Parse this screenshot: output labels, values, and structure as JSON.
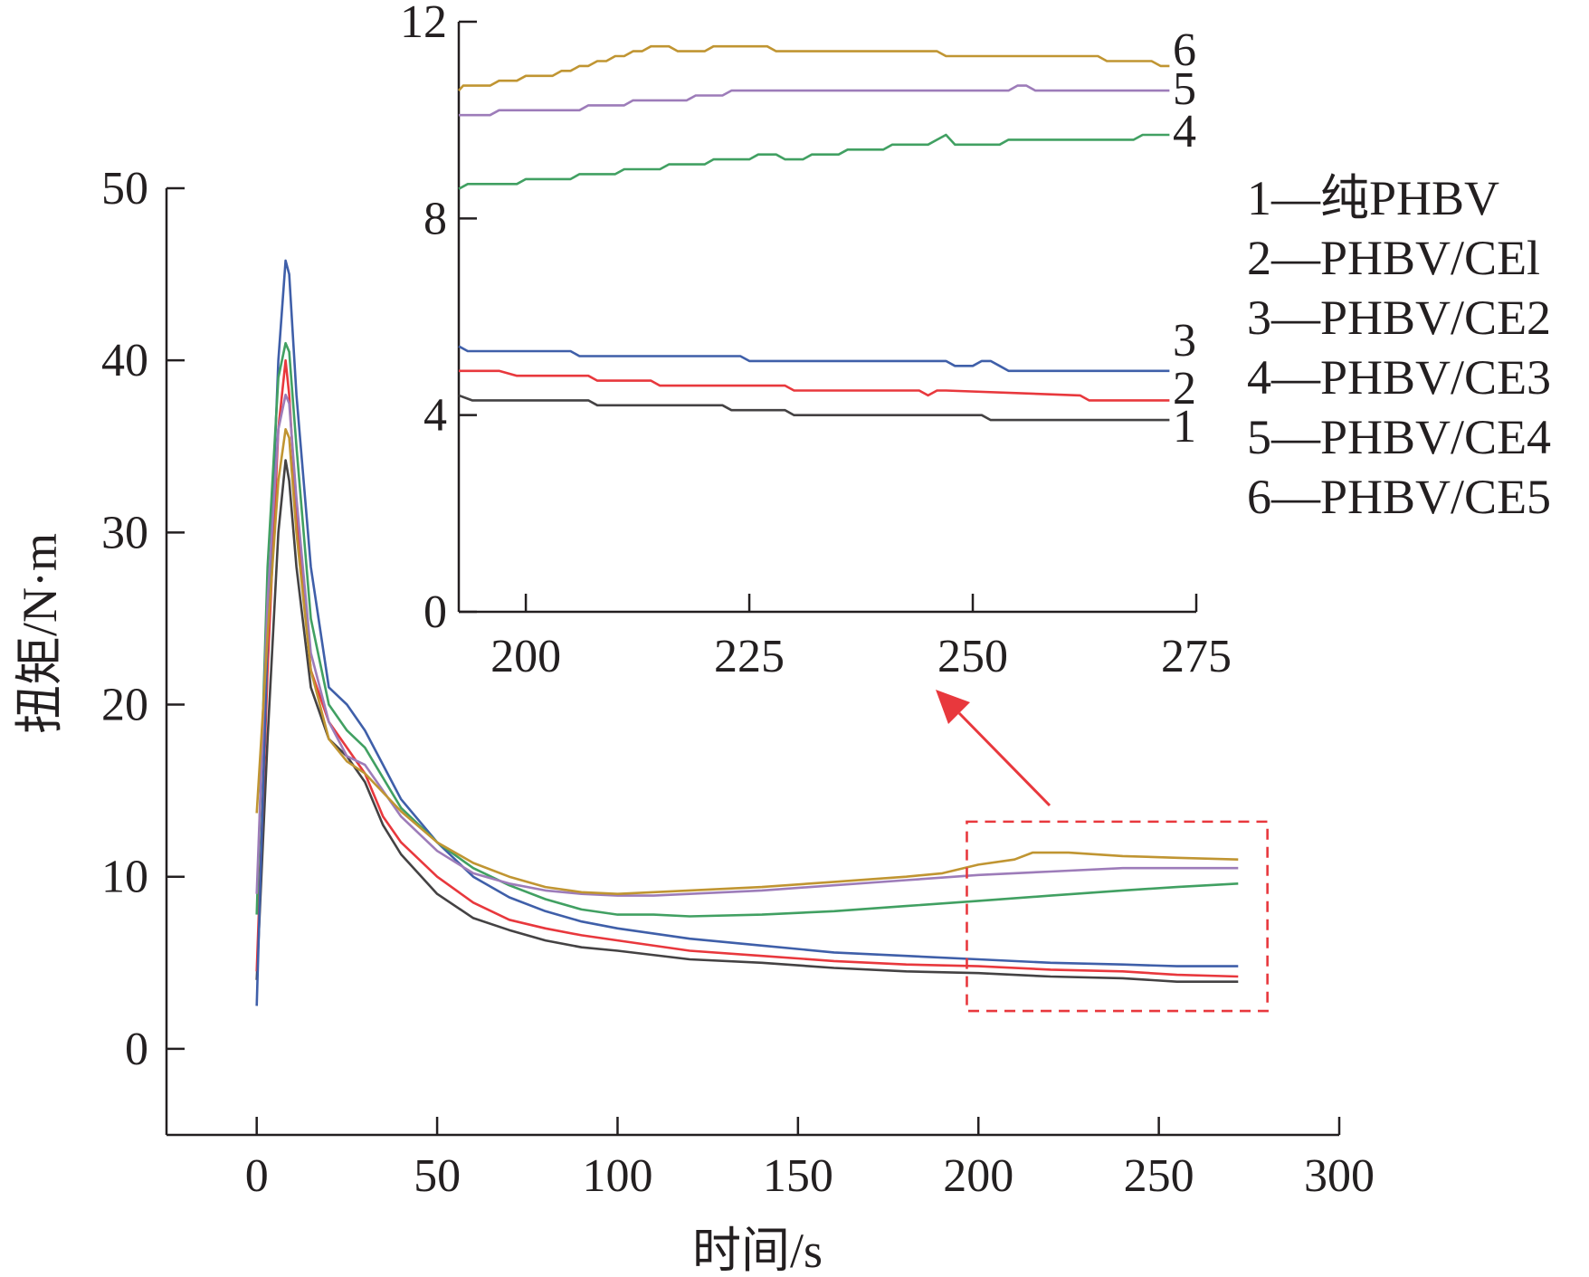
{
  "chart_data": [
    {
      "type": "line",
      "panel": "main",
      "xlabel": "时间/s",
      "ylabel": "扭矩/N·m",
      "xlim": [
        -25,
        300
      ],
      "ylim": [
        -5,
        50
      ],
      "xticks": [
        0,
        50,
        100,
        150,
        200,
        250,
        300
      ],
      "yticks": [
        0,
        10,
        20,
        30,
        40,
        50
      ],
      "grid": false,
      "legend_position": "right",
      "legend": [
        "1—纯PHBV",
        "2—PHBV/CEl",
        "3—PHBV/CE2",
        "4—PHBV/CE3",
        "5—PHBV/CE4",
        "6—PHBV/CE5"
      ],
      "zoom_box": {
        "x": [
          196.8,
          280.1
        ],
        "y": [
          2.2,
          13.2
        ],
        "color": "#e8383d"
      },
      "series": [
        {
          "id": "1",
          "color": "#444243",
          "x": [
            0,
            3,
            6,
            8,
            9,
            11,
            15,
            20,
            25,
            30,
            35,
            40,
            50,
            60,
            70,
            80,
            90,
            100,
            120,
            140,
            160,
            180,
            200,
            220,
            240,
            255,
            272
          ],
          "y": [
            4.0,
            18.0,
            30.0,
            34.2,
            33.0,
            28.0,
            21.0,
            18.0,
            17.0,
            15.5,
            13.0,
            11.3,
            9.0,
            7.6,
            6.9,
            6.3,
            5.9,
            5.7,
            5.2,
            5.0,
            4.7,
            4.5,
            4.4,
            4.2,
            4.1,
            3.9,
            3.9
          ]
        },
        {
          "id": "2",
          "color": "#e8383d",
          "x": [
            0,
            3,
            6,
            8,
            9,
            11,
            15,
            20,
            25,
            30,
            35,
            40,
            50,
            60,
            70,
            80,
            90,
            100,
            120,
            140,
            160,
            180,
            200,
            220,
            240,
            255,
            272
          ],
          "y": [
            4.5,
            22.0,
            36.0,
            40.0,
            38.0,
            31.0,
            22.0,
            19.0,
            17.5,
            16.0,
            13.5,
            12.0,
            10.0,
            8.5,
            7.5,
            7.0,
            6.6,
            6.3,
            5.7,
            5.4,
            5.1,
            4.9,
            4.8,
            4.6,
            4.5,
            4.3,
            4.2
          ]
        },
        {
          "id": "3",
          "color": "#3f5fa9",
          "x": [
            0,
            3,
            6,
            8,
            9,
            11,
            15,
            20,
            25,
            30,
            35,
            40,
            50,
            60,
            70,
            80,
            90,
            100,
            120,
            140,
            160,
            180,
            200,
            220,
            240,
            255,
            272
          ],
          "y": [
            2.5,
            24.0,
            40.0,
            45.8,
            45.0,
            38.0,
            28.0,
            21.0,
            20.0,
            18.5,
            16.5,
            14.5,
            12.0,
            10.0,
            8.8,
            8.0,
            7.4,
            7.0,
            6.4,
            6.0,
            5.6,
            5.4,
            5.2,
            5.0,
            4.9,
            4.8,
            4.8
          ]
        },
        {
          "id": "4",
          "color": "#41a062",
          "x": [
            0,
            3,
            6,
            8,
            9,
            11,
            15,
            20,
            25,
            30,
            40,
            50,
            60,
            70,
            80,
            90,
            100,
            110,
            120,
            140,
            160,
            180,
            200,
            220,
            240,
            255,
            272
          ],
          "y": [
            7.8,
            28.0,
            39.0,
            41.0,
            40.5,
            35.0,
            25.0,
            20.0,
            18.5,
            17.5,
            14.0,
            12.0,
            10.5,
            9.5,
            8.7,
            8.1,
            7.8,
            7.8,
            7.7,
            7.8,
            8.0,
            8.3,
            8.6,
            8.9,
            9.2,
            9.4,
            9.6
          ]
        },
        {
          "id": "5",
          "color": "#9d7cb9",
          "x": [
            0,
            3,
            6,
            8,
            9,
            11,
            15,
            20,
            25,
            30,
            40,
            50,
            60,
            70,
            80,
            90,
            100,
            110,
            120,
            140,
            160,
            180,
            200,
            220,
            240,
            255,
            272
          ],
          "y": [
            9.0,
            26.0,
            36.0,
            38.0,
            37.5,
            32.0,
            23.0,
            19.0,
            17.0,
            16.5,
            13.5,
            11.5,
            10.2,
            9.6,
            9.2,
            9.0,
            8.9,
            8.9,
            9.0,
            9.2,
            9.5,
            9.8,
            10.1,
            10.3,
            10.5,
            10.5,
            10.5
          ]
        },
        {
          "id": "6",
          "color": "#c09532",
          "x": [
            0,
            3,
            6,
            8,
            9,
            11,
            15,
            20,
            25,
            30,
            40,
            50,
            60,
            70,
            80,
            90,
            100,
            110,
            120,
            140,
            160,
            180,
            190,
            200,
            210,
            215,
            225,
            240,
            255,
            272
          ],
          "y": [
            13.7,
            24.0,
            33.0,
            36.0,
            35.5,
            30.0,
            22.0,
            18.0,
            16.7,
            16.0,
            13.8,
            12.0,
            10.8,
            10.0,
            9.4,
            9.1,
            9.0,
            9.1,
            9.2,
            9.4,
            9.7,
            10.0,
            10.2,
            10.7,
            11.0,
            11.4,
            11.4,
            11.2,
            11.1,
            11.0
          ]
        }
      ]
    },
    {
      "type": "line",
      "panel": "inset",
      "xlim": [
        192.5,
        275
      ],
      "ylim": [
        0,
        12
      ],
      "xticks": [
        200,
        225,
        250,
        275
      ],
      "yticks": [
        0,
        4,
        8,
        12
      ],
      "grid": false,
      "end_labels": [
        "1",
        "2",
        "3",
        "4",
        "5",
        "6"
      ],
      "series": [
        {
          "id": "1",
          "color": "#444243",
          "x": [
            192.5,
            194,
            207,
            208,
            222,
            223,
            225,
            226,
            229,
            230,
            251,
            252,
            272
          ],
          "y": [
            4.4,
            4.3,
            4.3,
            4.2,
            4.2,
            4.1,
            4.1,
            4.1,
            4.1,
            4.0,
            4.0,
            3.9,
            3.9
          ]
        },
        {
          "id": "2",
          "color": "#e8383d",
          "x": [
            192.5,
            194,
            197,
            199,
            207,
            208,
            214,
            215,
            229,
            230,
            244,
            245,
            246,
            247,
            262,
            263,
            272
          ],
          "y": [
            4.9,
            4.9,
            4.9,
            4.8,
            4.8,
            4.7,
            4.7,
            4.6,
            4.6,
            4.5,
            4.5,
            4.4,
            4.5,
            4.5,
            4.4,
            4.3,
            4.3
          ]
        },
        {
          "id": "3",
          "color": "#3f5fa9",
          "x": [
            192.5,
            193.5,
            197,
            198,
            205,
            206,
            224,
            225,
            247,
            248,
            249,
            250,
            251,
            252,
            253,
            254,
            272
          ],
          "y": [
            5.4,
            5.3,
            5.3,
            5.3,
            5.3,
            5.2,
            5.2,
            5.1,
            5.1,
            5.0,
            5.0,
            5.0,
            5.1,
            5.1,
            5.0,
            4.9,
            4.9
          ]
        },
        {
          "id": "4",
          "color": "#41a062",
          "x": [
            192.5,
            193.5,
            199,
            200,
            205,
            206,
            210,
            211,
            215,
            216,
            220,
            221,
            225,
            226,
            228,
            229,
            231,
            232,
            235,
            236,
            240,
            241,
            245,
            246,
            247,
            248,
            249,
            250,
            253,
            254,
            268,
            269,
            272
          ],
          "y": [
            8.6,
            8.7,
            8.7,
            8.8,
            8.8,
            8.9,
            8.9,
            9.0,
            9.0,
            9.1,
            9.1,
            9.2,
            9.2,
            9.3,
            9.3,
            9.2,
            9.2,
            9.3,
            9.3,
            9.4,
            9.4,
            9.5,
            9.5,
            9.6,
            9.7,
            9.5,
            9.5,
            9.5,
            9.5,
            9.6,
            9.6,
            9.7,
            9.7
          ]
        },
        {
          "id": "5",
          "color": "#9d7cb9",
          "x": [
            192.5,
            196,
            197,
            206,
            207,
            211,
            212,
            218,
            219,
            222,
            223,
            254,
            255,
            256,
            257,
            272
          ],
          "y": [
            10.1,
            10.1,
            10.2,
            10.2,
            10.3,
            10.3,
            10.4,
            10.4,
            10.5,
            10.5,
            10.6,
            10.6,
            10.7,
            10.7,
            10.6,
            10.6
          ]
        },
        {
          "id": "6",
          "color": "#c09532",
          "x": [
            192.5,
            193,
            196,
            197,
            199,
            200,
            203,
            204,
            205,
            206,
            207,
            208,
            209,
            210,
            211,
            212,
            213,
            214,
            215,
            216,
            217,
            218,
            220,
            221,
            222,
            223,
            227,
            228,
            246,
            247,
            264,
            265,
            270,
            271,
            272
          ],
          "y": [
            10.6,
            10.7,
            10.7,
            10.8,
            10.8,
            10.9,
            10.9,
            11.0,
            11.0,
            11.1,
            11.1,
            11.2,
            11.2,
            11.3,
            11.3,
            11.4,
            11.4,
            11.5,
            11.5,
            11.5,
            11.4,
            11.4,
            11.4,
            11.5,
            11.5,
            11.5,
            11.5,
            11.4,
            11.4,
            11.3,
            11.3,
            11.2,
            11.2,
            11.1,
            11.1
          ]
        }
      ]
    }
  ]
}
